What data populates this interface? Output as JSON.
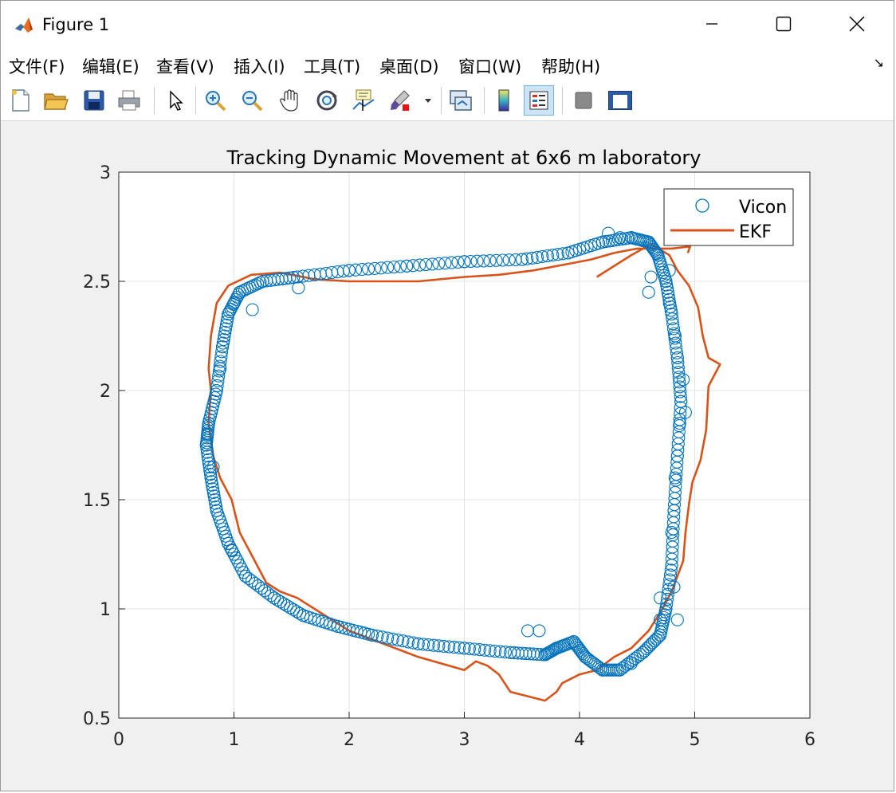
{
  "window": {
    "title": "Figure 1"
  },
  "menu": [
    "文件(F)",
    "编辑(E)",
    "查看(V)",
    "插入(I)",
    "工具(T)",
    "桌面(D)",
    "窗口(W)",
    "帮助(H)"
  ],
  "toolbar": [
    "new-figure",
    "open-file",
    "save",
    "print",
    "edit-plot",
    "zoom-in",
    "zoom-out",
    "pan",
    "rotate-3d",
    "data-cursor",
    "brush",
    "link-plot",
    "insert-colorbar",
    "insert-legend",
    "hide-plot-tools",
    "show-plot-tools"
  ],
  "chart_data": {
    "type": "scatter",
    "title": "Tracking Dynamic Movement at 6x6 m laboratory",
    "xlabel": "",
    "ylabel": "",
    "xlim": [
      0,
      6
    ],
    "ylim": [
      0.5,
      3
    ],
    "xticks": [
      "0",
      "1",
      "2",
      "3",
      "4",
      "5",
      "6"
    ],
    "yticks": [
      "0.5",
      "1",
      "1.5",
      "2",
      "2.5",
      "3"
    ],
    "grid": true,
    "legend_position": "top-right",
    "series": [
      {
        "name": "Vicon",
        "type": "scatter",
        "color": "#0072BD",
        "marker": "circle",
        "points": [
          [
            1.55,
            2.52
          ],
          [
            2.0,
            2.55
          ],
          [
            2.5,
            2.57
          ],
          [
            3.0,
            2.59
          ],
          [
            3.5,
            2.6
          ],
          [
            3.9,
            2.63
          ],
          [
            4.2,
            2.68
          ],
          [
            4.45,
            2.7
          ],
          [
            4.6,
            2.68
          ],
          [
            4.68,
            2.62
          ],
          [
            4.75,
            2.5
          ],
          [
            4.8,
            2.35
          ],
          [
            4.85,
            2.15
          ],
          [
            4.88,
            1.95
          ],
          [
            4.85,
            1.7
          ],
          [
            4.82,
            1.45
          ],
          [
            4.8,
            1.2
          ],
          [
            4.75,
            1.0
          ],
          [
            4.7,
            0.88
          ],
          [
            4.55,
            0.8
          ],
          [
            4.35,
            0.72
          ],
          [
            4.2,
            0.72
          ],
          [
            4.05,
            0.78
          ],
          [
            3.95,
            0.85
          ],
          [
            3.8,
            0.82
          ],
          [
            3.7,
            0.79
          ],
          [
            3.4,
            0.8
          ],
          [
            3.0,
            0.82
          ],
          [
            2.6,
            0.84
          ],
          [
            2.2,
            0.88
          ],
          [
            1.9,
            0.92
          ],
          [
            1.6,
            0.97
          ],
          [
            1.35,
            1.05
          ],
          [
            1.1,
            1.15
          ],
          [
            0.95,
            1.3
          ],
          [
            0.85,
            1.45
          ],
          [
            0.8,
            1.6
          ],
          [
            0.76,
            1.75
          ],
          [
            0.78,
            1.85
          ],
          [
            0.85,
            2.0
          ],
          [
            0.9,
            2.2
          ],
          [
            0.95,
            2.35
          ],
          [
            1.05,
            2.45
          ],
          [
            1.25,
            2.5
          ],
          [
            4.35,
            2.7
          ],
          [
            4.78,
            2.4
          ],
          [
            4.83,
            2.25
          ],
          [
            4.9,
            2.05
          ],
          [
            4.87,
            1.85
          ],
          [
            4.83,
            1.6
          ],
          [
            4.8,
            1.35
          ],
          [
            4.82,
            1.1
          ],
          [
            4.7,
            0.95
          ],
          [
            4.45,
            0.75
          ],
          [
            3.55,
            0.9
          ],
          [
            3.65,
            0.9
          ],
          [
            0.82,
            1.65
          ],
          [
            0.77,
            1.8
          ],
          [
            0.88,
            2.1
          ],
          [
            1.0,
            2.4
          ],
          [
            4.6,
            2.45
          ],
          [
            4.62,
            2.52
          ],
          [
            0.98,
            1.27
          ],
          [
            1.16,
            2.37
          ],
          [
            4.25,
            2.72
          ],
          [
            4.78,
            2.55
          ],
          [
            4.92,
            1.9
          ],
          [
            4.7,
            1.05
          ],
          [
            4.85,
            0.95
          ],
          [
            1.56,
            2.47
          ]
        ]
      },
      {
        "name": "EKF",
        "type": "line",
        "color": "#D95319",
        "points": [
          [
            4.15,
            2.52
          ],
          [
            4.45,
            2.62
          ],
          [
            4.62,
            2.67
          ],
          [
            4.78,
            2.62
          ],
          [
            4.85,
            2.55
          ],
          [
            4.95,
            2.48
          ],
          [
            5.03,
            2.38
          ],
          [
            5.07,
            2.25
          ],
          [
            5.12,
            2.15
          ],
          [
            5.22,
            2.12
          ],
          [
            5.12,
            2.02
          ],
          [
            5.1,
            1.82
          ],
          [
            5.05,
            1.68
          ],
          [
            4.98,
            1.58
          ],
          [
            4.95,
            1.48
          ],
          [
            4.92,
            1.35
          ],
          [
            4.9,
            1.22
          ],
          [
            4.85,
            1.15
          ],
          [
            4.8,
            1.08
          ],
          [
            4.72,
            1.0
          ],
          [
            4.6,
            0.9
          ],
          [
            4.45,
            0.82
          ],
          [
            4.3,
            0.78
          ],
          [
            4.15,
            0.72
          ],
          [
            4.0,
            0.7
          ],
          [
            3.85,
            0.66
          ],
          [
            3.8,
            0.62
          ],
          [
            3.7,
            0.58
          ],
          [
            3.55,
            0.6
          ],
          [
            3.4,
            0.62
          ],
          [
            3.3,
            0.7
          ],
          [
            3.2,
            0.74
          ],
          [
            3.1,
            0.76
          ],
          [
            3.0,
            0.72
          ],
          [
            2.8,
            0.75
          ],
          [
            2.6,
            0.78
          ],
          [
            2.4,
            0.82
          ],
          [
            2.2,
            0.86
          ],
          [
            2.0,
            0.9
          ],
          [
            1.85,
            0.95
          ],
          [
            1.7,
            1.0
          ],
          [
            1.55,
            1.05
          ],
          [
            1.4,
            1.08
          ],
          [
            1.28,
            1.12
          ],
          [
            1.15,
            1.25
          ],
          [
            1.05,
            1.35
          ],
          [
            0.98,
            1.5
          ],
          [
            0.88,
            1.6
          ],
          [
            0.82,
            1.7
          ],
          [
            0.78,
            1.85
          ],
          [
            0.8,
            2.0
          ],
          [
            0.78,
            2.1
          ],
          [
            0.8,
            2.25
          ],
          [
            0.85,
            2.4
          ],
          [
            0.95,
            2.48
          ],
          [
            1.15,
            2.53
          ],
          [
            1.4,
            2.54
          ],
          [
            1.7,
            2.51
          ],
          [
            2.0,
            2.5
          ],
          [
            2.3,
            2.5
          ],
          [
            2.6,
            2.5
          ],
          [
            3.0,
            2.52
          ],
          [
            3.3,
            2.53
          ],
          [
            3.6,
            2.55
          ],
          [
            3.9,
            2.58
          ],
          [
            4.1,
            2.6
          ],
          [
            4.3,
            2.63
          ],
          [
            4.5,
            2.65
          ],
          [
            4.65,
            2.65
          ],
          [
            4.8,
            2.65
          ],
          [
            4.96,
            2.66
          ],
          [
            4.94,
            2.63
          ]
        ]
      }
    ]
  }
}
